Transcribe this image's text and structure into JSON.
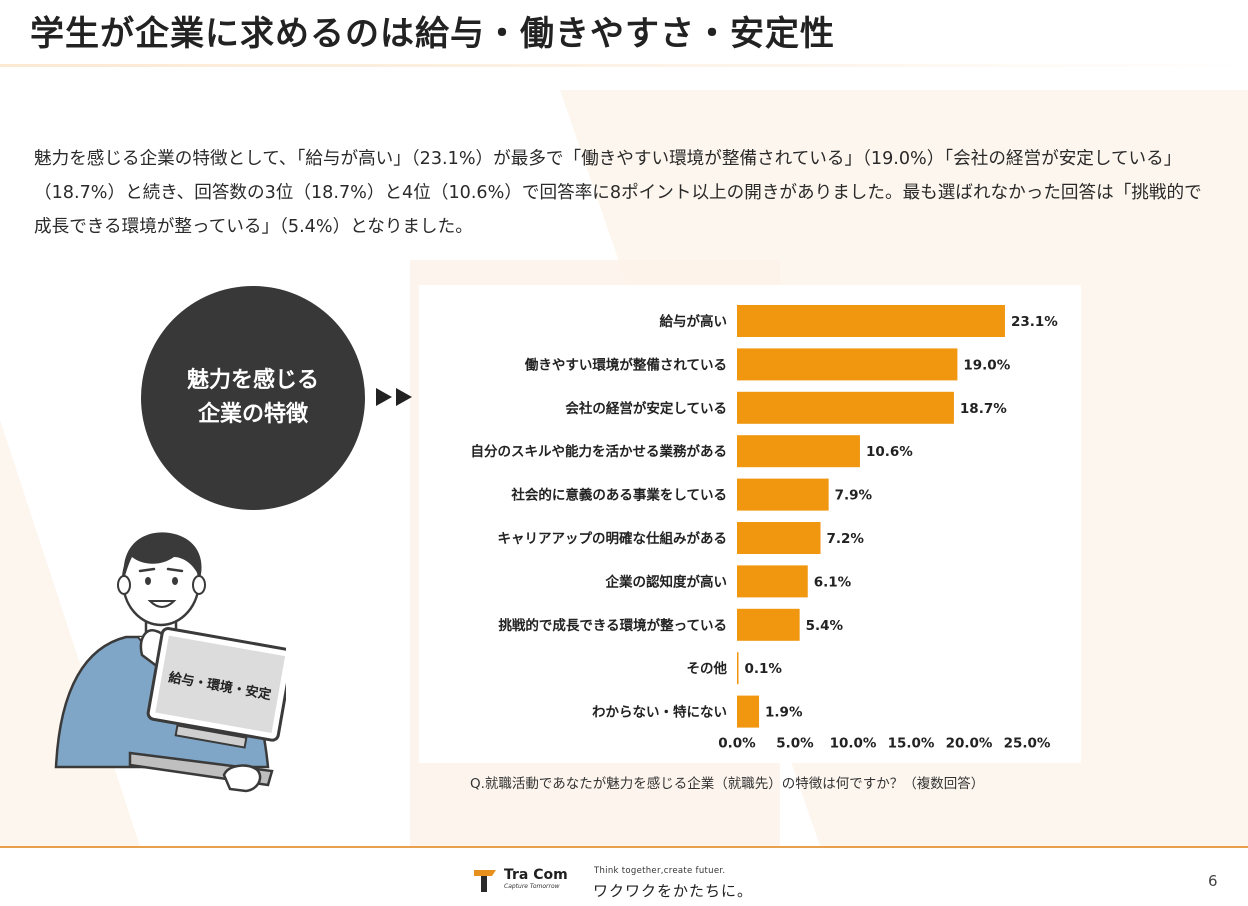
{
  "title": "学生が企業に求めるのは給与・働きやすさ・安定性",
  "summary": "魅力を感じる企業の特徴として、「給与が高い」（23.1%）が最多で「働きやすい環境が整備されている」（19.0%）「会社の経営が安定している」（18.7%）と続き、回答数の3位（18.7%）と4位（10.6%）で回答率に8ポイント以上の開きがありました。最も選ばれなかった回答は「挑戦的で成長できる環境が整っている」（5.4%）となりました。",
  "badge": {
    "line1": "魅力を感じる",
    "line2": "企業の特徴"
  },
  "laptop_text": "給与・環境・安定",
  "question": "Q.就職活動であなたが魅力を感じる企業（就職先）の特徴は何ですか？（複数回答）",
  "footer": {
    "logo_name": "Tra Com",
    "logo_tagline": "Capture Tomorrow",
    "tagline_en": "Think together,create futuer.",
    "tagline_jp": "ワクワクをかたちに。",
    "page": "6"
  },
  "colors": {
    "bar": "#f0960f",
    "badge": "#383838",
    "footer_rule": "#e8a04c"
  },
  "chart_data": {
    "type": "bar",
    "orientation": "horizontal",
    "categories": [
      "給与が高い",
      "働きやすい環境が整備されている",
      "会社の経営が安定している",
      "自分のスキルや能力を活かせる業務がある",
      "社会的に意義のある事業をしている",
      "キャリアアップの明確な仕組みがある",
      "企業の認知度が高い",
      "挑戦的で成長できる環境が整っている",
      "その他",
      "わからない・特にない"
    ],
    "values": [
      23.1,
      19.0,
      18.7,
      10.6,
      7.9,
      7.2,
      6.1,
      5.4,
      0.1,
      1.9
    ],
    "value_labels": [
      "23.1%",
      "19.0%",
      "18.7%",
      "10.6%",
      "7.9%",
      "7.2%",
      "6.1%",
      "5.4%",
      "0.1%",
      "1.9%"
    ],
    "x_ticks": [
      "0.0%",
      "5.0%",
      "10.0%",
      "15.0%",
      "20.0%",
      "25.0%"
    ],
    "xlim": [
      0,
      25
    ],
    "grid": false
  }
}
